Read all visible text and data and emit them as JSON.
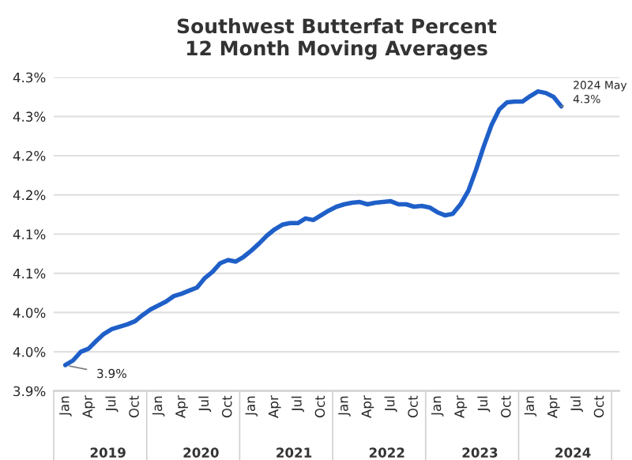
{
  "chart_data": {
    "type": "line",
    "title": "Southwest Butterfat Percent\n12 Month Moving Averages",
    "categories": [
      "Jan",
      null,
      null,
      "Apr",
      null,
      null,
      "Jul",
      null,
      null,
      "Oct",
      null,
      null,
      "Jan",
      null,
      null,
      "Apr",
      null,
      null,
      "Jul",
      null,
      null,
      "Oct",
      null,
      null,
      "Jan",
      null,
      null,
      "Apr",
      null,
      null,
      "Jul",
      null,
      null,
      "Oct",
      null,
      null,
      "Jan",
      null,
      null,
      "Apr",
      null,
      null,
      "Jul",
      null,
      null,
      "Oct",
      null,
      null,
      "Jan",
      null,
      null,
      "Apr",
      null,
      null,
      "Jul",
      null,
      null,
      "Oct",
      null,
      null,
      "Jan",
      null,
      null,
      "Apr",
      null,
      null,
      "Jul",
      null,
      null,
      "Oct",
      null,
      null
    ],
    "series": [
      {
        "color": "#1f5fc8",
        "values": [
          3.933,
          3.939,
          3.95,
          3.954,
          3.964,
          3.973,
          3.979,
          3.982,
          3.985,
          3.989,
          3.997,
          4.004,
          4.009,
          4.014,
          4.021,
          4.024,
          4.028,
          4.032,
          4.044,
          4.052,
          4.063,
          4.067,
          4.065,
          4.071,
          4.079,
          4.088,
          4.098,
          4.106,
          4.112,
          4.114,
          4.114,
          4.12,
          4.118,
          4.124,
          4.13,
          4.135,
          4.138,
          4.14,
          4.141,
          4.138,
          4.14,
          4.141,
          4.142,
          4.138,
          4.138,
          4.135,
          4.136,
          4.134,
          4.128,
          4.124,
          4.126,
          4.138,
          4.155,
          4.182,
          4.212,
          4.239,
          4.259,
          4.268,
          4.269,
          4.269,
          4.276,
          4.282,
          4.28,
          4.275,
          4.263,
          null,
          null,
          null,
          null,
          null,
          null,
          null
        ]
      }
    ],
    "ylim": [
      3.9,
      4.3
    ],
    "yticks": [
      {
        "value": 3.9,
        "label": "3.9%"
      },
      {
        "value": 3.95,
        "label": "4.0%"
      },
      {
        "value": 4.0,
        "label": "4.0%"
      },
      {
        "value": 4.05,
        "label": "4.1%"
      },
      {
        "value": 4.1,
        "label": "4.1%"
      },
      {
        "value": 4.15,
        "label": "4.2%"
      },
      {
        "value": 4.2,
        "label": "4.2%"
      },
      {
        "value": 4.25,
        "label": "4.3%"
      },
      {
        "value": 4.3,
        "label": "4.3%"
      }
    ],
    "annotations": [
      "3.9%",
      "2024 May\n4.3%",
      "2019",
      "2020",
      "2021",
      "2022",
      "2023",
      "2024"
    ],
    "grid": "y",
    "legend": false,
    "marker": "none",
    "line_style": "solid"
  }
}
